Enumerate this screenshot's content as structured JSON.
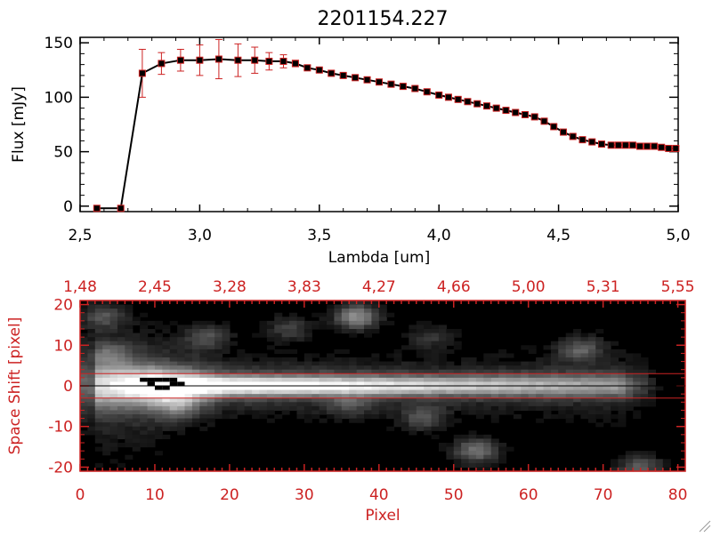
{
  "chart_data": [
    {
      "type": "line",
      "title": "2201154.227",
      "xlabel": "Lambda [um]",
      "ylabel": "Flux [mJy]",
      "xlim": [
        2.5,
        5.0
      ],
      "ylim": [
        -5,
        155
      ],
      "x_ticks": [
        2.5,
        3.0,
        3.5,
        4.0,
        4.5,
        5.0
      ],
      "x_tick_labels": [
        "2,5",
        "3,0",
        "3,5",
        "4,0",
        "4,5",
        "5,0"
      ],
      "y_ticks": [
        0,
        50,
        100,
        150
      ],
      "y_tick_labels": [
        "0",
        "50",
        "100",
        "150"
      ],
      "grid": false,
      "series": [
        {
          "x": [
            2.57,
            2.67,
            2.76,
            2.84,
            2.92,
            3.0,
            3.08,
            3.16,
            3.23,
            3.29,
            3.35,
            3.4,
            3.45,
            3.5,
            3.55,
            3.6,
            3.65,
            3.7,
            3.75,
            3.8,
            3.85,
            3.9,
            3.95,
            4.0,
            4.04,
            4.08,
            4.12,
            4.16,
            4.2,
            4.24,
            4.28,
            4.32,
            4.36,
            4.4,
            4.44,
            4.48,
            4.52,
            4.56,
            4.6,
            4.64,
            4.68,
            4.72,
            4.75,
            4.78,
            4.81,
            4.84,
            4.87,
            4.9,
            4.93,
            4.96,
            4.99
          ],
          "values": [
            -2,
            -2,
            122,
            131,
            134,
            134,
            135,
            134,
            134,
            133,
            133,
            131,
            127,
            125,
            122,
            120,
            118,
            116,
            114,
            112,
            110,
            108,
            105,
            102,
            100,
            98,
            96,
            94,
            92,
            90,
            88,
            86,
            84,
            82,
            78,
            73,
            68,
            64,
            61,
            59,
            57,
            56,
            56,
            56,
            56,
            55,
            55,
            55,
            54,
            53,
            53
          ],
          "err": [
            0,
            0,
            22,
            10,
            10,
            14,
            18,
            15,
            12,
            8,
            6,
            3,
            2,
            2,
            2,
            2,
            2,
            2,
            2,
            2,
            2,
            2,
            2,
            2,
            2,
            2,
            2,
            2,
            2,
            2,
            2,
            2,
            2,
            2,
            2,
            2,
            2,
            2,
            2,
            2,
            2,
            2,
            2,
            2,
            2,
            2,
            2,
            2,
            2,
            2,
            2
          ],
          "line_color": "#000000",
          "marker_color": "#000000",
          "marker_edge_color": "#cc2222",
          "error_bar_color": "#cc2222"
        }
      ]
    },
    {
      "type": "heatmap",
      "xlabel": "Pixel",
      "ylabel": "Space Shift [pixel]",
      "xlim": [
        0,
        81
      ],
      "ylim": [
        -21,
        21
      ],
      "x_ticks": [
        0,
        10,
        20,
        30,
        40,
        50,
        60,
        70,
        80
      ],
      "x_tick_labels": [
        "0",
        "10",
        "20",
        "30",
        "40",
        "50",
        "60",
        "70",
        "80"
      ],
      "y_ticks": [
        -20,
        -10,
        0,
        10,
        20
      ],
      "y_tick_labels": [
        "-20",
        "-10",
        "0",
        "10",
        "20"
      ],
      "top_axis_positions": [
        0,
        10,
        20,
        30,
        40,
        50,
        60,
        70,
        80
      ],
      "top_axis_labels": [
        "1,48",
        "2,45",
        "3,28",
        "3,83",
        "4,27",
        "4,66",
        "5,00",
        "5,31",
        "5,55"
      ],
      "aperture_lines_y": [
        3,
        -3
      ],
      "center_line_y": 0,
      "colormap": "grayscale",
      "axis_color": "#cc2222",
      "aperture_color": "#cc2222",
      "bright_blobs": [
        {
          "x": 37,
          "y": 17,
          "strength": 0.55
        },
        {
          "x": 17,
          "y": 12,
          "strength": 0.3
        },
        {
          "x": 28,
          "y": 14,
          "strength": 0.25
        },
        {
          "x": 47,
          "y": 12,
          "strength": 0.2
        },
        {
          "x": 67,
          "y": 9,
          "strength": 0.35
        },
        {
          "x": 36,
          "y": -5,
          "strength": 0.2
        },
        {
          "x": 46,
          "y": -8,
          "strength": 0.3
        },
        {
          "x": 53,
          "y": -16,
          "strength": 0.45
        },
        {
          "x": 13,
          "y": -5,
          "strength": 0.35
        },
        {
          "x": 75,
          "y": -20,
          "strength": 0.35
        },
        {
          "x": 3,
          "y": 17,
          "strength": 0.3
        },
        {
          "x": 4,
          "y": 8,
          "strength": 0.25
        }
      ]
    }
  ]
}
